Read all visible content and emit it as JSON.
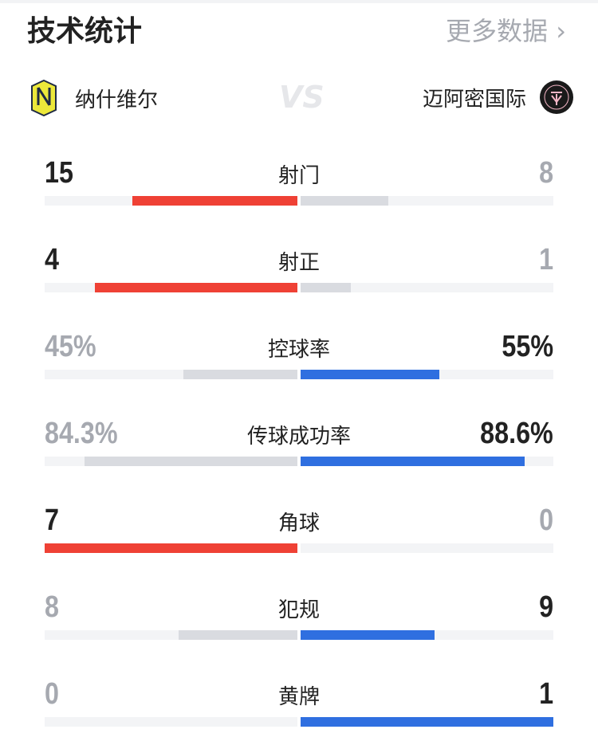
{
  "header": {
    "title": "技术统计",
    "more_label": "更多数据 ›"
  },
  "teams": {
    "home": {
      "name": "纳什维尔",
      "logo": "nashville-sc-logo"
    },
    "vs": "VS",
    "away": {
      "name": "迈阿密国际",
      "logo": "inter-miami-logo"
    }
  },
  "colors": {
    "home": "#ef4135",
    "away": "#2f6fe0",
    "loser_bar": "#d9dbe0",
    "win_text": "#222222",
    "lose_text": "#a6a9b0"
  },
  "stats": [
    {
      "label": "射门",
      "home": "15",
      "away": "8",
      "home_frac": 0.652,
      "away_frac": 0.348
    },
    {
      "label": "射正",
      "home": "4",
      "away": "1",
      "home_frac": 0.8,
      "away_frac": 0.2
    },
    {
      "label": "控球率",
      "home": "45%",
      "away": "55%",
      "home_frac": 0.45,
      "away_frac": 0.55
    },
    {
      "label": "传球成功率",
      "home": "84.3%",
      "away": "88.6%",
      "home_frac": 0.843,
      "away_frac": 0.886
    },
    {
      "label": "角球",
      "home": "7",
      "away": "0",
      "home_frac": 1,
      "away_frac": 0
    },
    {
      "label": "犯规",
      "home": "8",
      "away": "9",
      "home_frac": 0.47,
      "away_frac": 0.53
    },
    {
      "label": "黄牌",
      "home": "0",
      "away": "1",
      "home_frac": 0,
      "away_frac": 1
    }
  ]
}
